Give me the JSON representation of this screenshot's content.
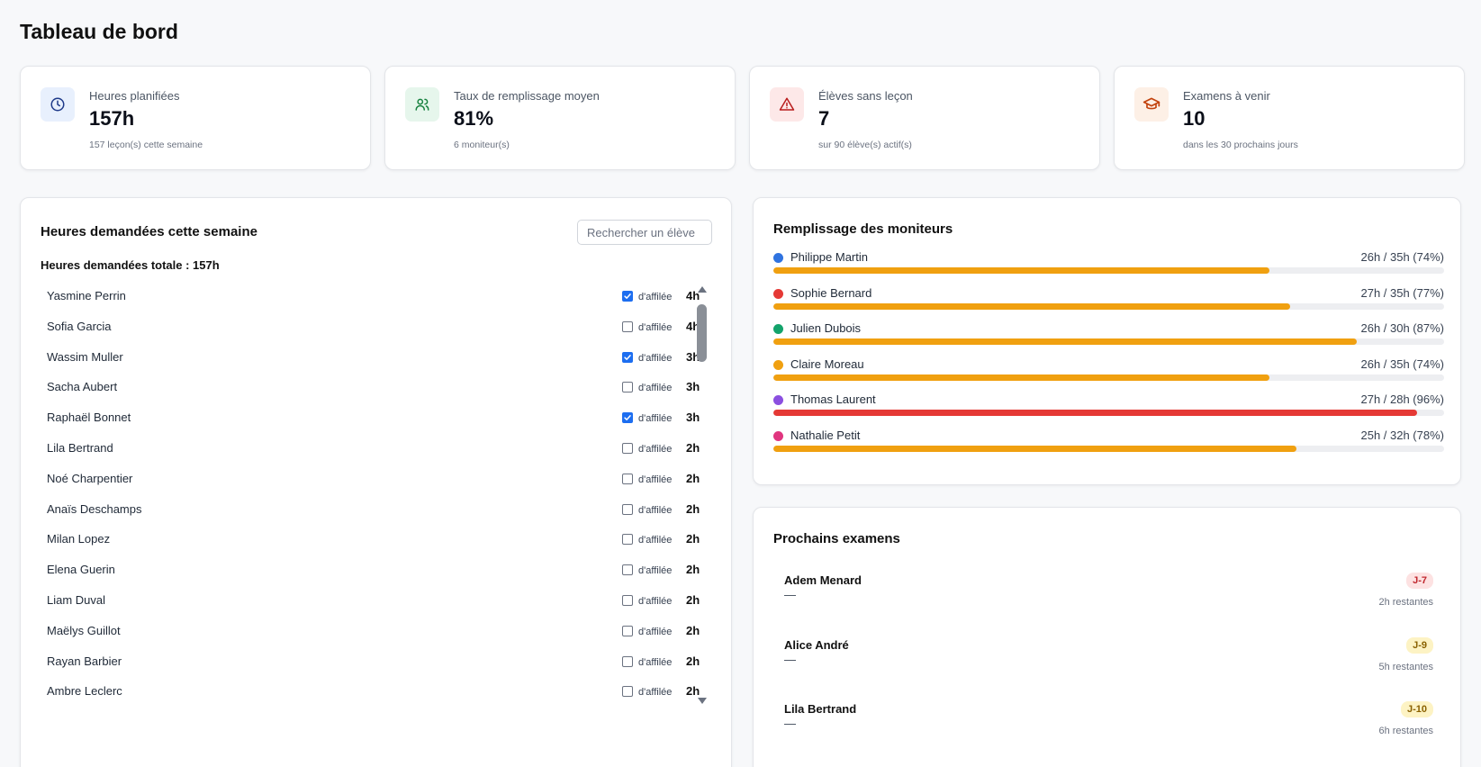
{
  "header": {
    "title": "Tableau de bord"
  },
  "stats": [
    {
      "label": "Heures planifiées",
      "value": "157h",
      "sub": "157 leçon(s) cette semaine",
      "icon": "clock-icon",
      "color": "#1e3a8a",
      "bg": "#e8f0fd"
    },
    {
      "label": "Taux de remplissage moyen",
      "value": "81%",
      "sub": "6 moniteur(s)",
      "icon": "users-icon",
      "color": "#15803d",
      "bg": "#e6f6ec"
    },
    {
      "label": "Élèves sans leçon",
      "value": "7",
      "sub": "sur 90 élève(s) actif(s)",
      "icon": "alert-triangle-icon",
      "color": "#b91c1c",
      "bg": "#fde8e8"
    },
    {
      "label": "Examens à venir",
      "value": "10",
      "sub": "dans les 30 prochains jours",
      "icon": "graduation-cap-icon",
      "color": "#c2410c",
      "bg": "#fdf0e6"
    }
  ],
  "hours_panel": {
    "title": "Heures demandées cette semaine",
    "search_placeholder": "Rechercher un élève",
    "total_label": "Heures demandées totale : 157h",
    "affiliee_label": "d'affilée",
    "students": [
      {
        "name": "Yasmine Perrin",
        "affiliee": true,
        "hours": "4h"
      },
      {
        "name": "Sofia Garcia",
        "affiliee": false,
        "hours": "4h"
      },
      {
        "name": "Wassim Muller",
        "affiliee": true,
        "hours": "3h"
      },
      {
        "name": "Sacha Aubert",
        "affiliee": false,
        "hours": "3h"
      },
      {
        "name": "Raphaël Bonnet",
        "affiliee": true,
        "hours": "3h"
      },
      {
        "name": "Lila Bertrand",
        "affiliee": false,
        "hours": "2h"
      },
      {
        "name": "Noé Charpentier",
        "affiliee": false,
        "hours": "2h"
      },
      {
        "name": "Anaïs Deschamps",
        "affiliee": false,
        "hours": "2h"
      },
      {
        "name": "Milan Lopez",
        "affiliee": false,
        "hours": "2h"
      },
      {
        "name": "Elena Guerin",
        "affiliee": false,
        "hours": "2h"
      },
      {
        "name": "Liam Duval",
        "affiliee": false,
        "hours": "2h"
      },
      {
        "name": "Maëlys Guillot",
        "affiliee": false,
        "hours": "2h"
      },
      {
        "name": "Rayan Barbier",
        "affiliee": false,
        "hours": "2h"
      },
      {
        "name": "Ambre Leclerc",
        "affiliee": false,
        "hours": "2h"
      }
    ]
  },
  "instructors_panel": {
    "title": "Remplissage des moniteurs",
    "instructors": [
      {
        "name": "Philippe Martin",
        "value_text": "26h / 35h (74%)",
        "fill": 0.74,
        "dot_color": "#2f73e0",
        "bar_color": "#f0a010"
      },
      {
        "name": "Sophie Bernard",
        "value_text": "27h / 35h (77%)",
        "fill": 0.77,
        "dot_color": "#e53935",
        "bar_color": "#f0a010"
      },
      {
        "name": "Julien Dubois",
        "value_text": "26h / 30h (87%)",
        "fill": 0.87,
        "dot_color": "#13a36b",
        "bar_color": "#f0a010"
      },
      {
        "name": "Claire Moreau",
        "value_text": "26h / 35h (74%)",
        "fill": 0.74,
        "dot_color": "#f0a010",
        "bar_color": "#f0a010"
      },
      {
        "name": "Thomas Laurent",
        "value_text": "27h / 28h (96%)",
        "fill": 0.96,
        "dot_color": "#8b4fe0",
        "bar_color": "#e53935"
      },
      {
        "name": "Nathalie Petit",
        "value_text": "25h / 32h (78%)",
        "fill": 0.78,
        "dot_color": "#e0357f",
        "bar_color": "#f0a010"
      }
    ]
  },
  "exams_panel": {
    "title": "Prochains examens",
    "exams": [
      {
        "name": "Adem Menard",
        "detail": "—",
        "badge": "J-7",
        "badge_bg": "#fde2e2",
        "badge_color": "#c0262d",
        "remaining": "2h restantes"
      },
      {
        "name": "Alice André",
        "detail": "—",
        "badge": "J-9",
        "badge_bg": "#fdf3c4",
        "badge_color": "#8a6100",
        "remaining": "5h restantes"
      },
      {
        "name": "Lila Bertrand",
        "detail": "—",
        "badge": "J-10",
        "badge_bg": "#fdf3c4",
        "badge_color": "#8a6100",
        "remaining": "6h restantes"
      }
    ]
  }
}
